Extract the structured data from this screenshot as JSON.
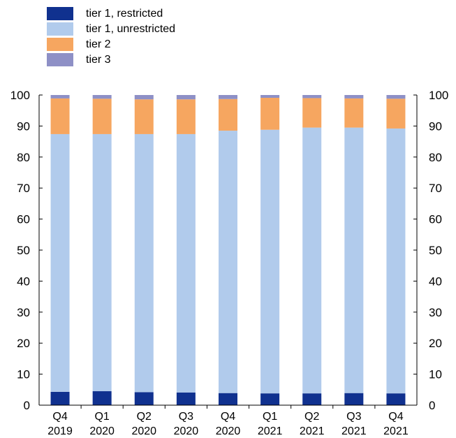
{
  "chart_data": {
    "type": "bar",
    "stacked": true,
    "title": "",
    "xlabel": "",
    "ylabel": "",
    "ylim": [
      0,
      100
    ],
    "yticks": [
      0,
      10,
      20,
      30,
      40,
      50,
      60,
      70,
      80,
      90,
      100
    ],
    "grid": false,
    "legend_position": "top-left",
    "categories": [
      [
        "Q4",
        "2019"
      ],
      [
        "Q1",
        "2020"
      ],
      [
        "Q2",
        "2020"
      ],
      [
        "Q3",
        "2020"
      ],
      [
        "Q4",
        "2020"
      ],
      [
        "Q1",
        "2021"
      ],
      [
        "Q2",
        "2021"
      ],
      [
        "Q3",
        "2021"
      ],
      [
        "Q4",
        "2021"
      ]
    ],
    "series": [
      {
        "name": "tier 1, restricted",
        "color": "#10318f",
        "values": [
          4.3,
          4.5,
          4.2,
          4.1,
          3.9,
          3.8,
          3.8,
          3.9,
          3.8
        ]
      },
      {
        "name": "tier 1, unrestricted",
        "color": "#b1cbec",
        "values": [
          83.1,
          82.9,
          83.2,
          83.3,
          84.6,
          85.0,
          85.7,
          85.6,
          85.4
        ]
      },
      {
        "name": "tier 2",
        "color": "#f6a660",
        "values": [
          11.5,
          11.4,
          11.2,
          11.2,
          10.2,
          10.3,
          9.5,
          9.4,
          9.6
        ]
      },
      {
        "name": "tier 3",
        "color": "#8e90c6",
        "values": [
          1.1,
          1.2,
          1.4,
          1.4,
          1.3,
          0.9,
          1.0,
          1.1,
          1.2
        ]
      }
    ]
  }
}
